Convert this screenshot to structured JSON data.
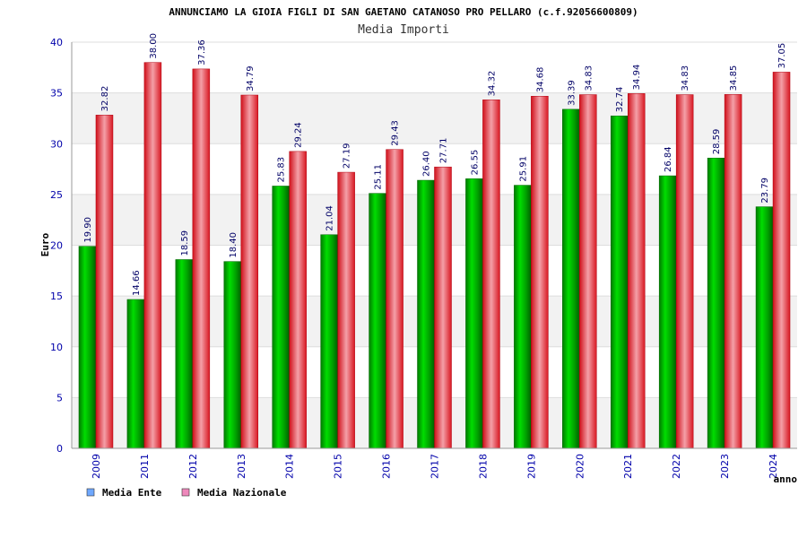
{
  "chart_data": {
    "type": "bar",
    "title": "ANNUNCIAMO LA GIOIA FIGLI DI SAN GAETANO CATANOSO PRO PELLARO (c.f.92056600809)",
    "subtitle": "Media Importi",
    "xlabel": "anno",
    "ylabel": "Euro",
    "ylim": [
      0,
      40
    ],
    "yticks": [
      0,
      5,
      10,
      15,
      20,
      25,
      30,
      35,
      40
    ],
    "grid": "horizontal bands",
    "legend_position": "bottom-left",
    "categories": [
      "2009",
      "2011",
      "2012",
      "2013",
      "2014",
      "2015",
      "2016",
      "2017",
      "2018",
      "2019",
      "2020",
      "2021",
      "2022",
      "2023",
      "2024"
    ],
    "series": [
      {
        "name": "Media Ente",
        "legend_color": "#6fa8ff",
        "color": "#00b400",
        "values": [
          19.9,
          14.66,
          18.59,
          18.4,
          25.83,
          21.04,
          25.11,
          26.4,
          26.55,
          25.91,
          33.39,
          32.74,
          26.84,
          28.59,
          23.79
        ],
        "labels": [
          "19.90",
          "14.66",
          "18.59",
          "18.40",
          "25.83",
          "21.04",
          "25.11",
          "26.40",
          "26.55",
          "25.91",
          "33.39",
          "32.74",
          "26.84",
          "28.59",
          "23.79"
        ]
      },
      {
        "name": "Media Nazionale",
        "legend_color": "#ee88bb",
        "color": "#e8202a",
        "values": [
          32.82,
          38.0,
          37.36,
          34.79,
          29.24,
          27.19,
          29.43,
          27.71,
          34.32,
          34.68,
          34.83,
          34.94,
          34.83,
          34.85,
          37.05
        ],
        "labels": [
          "32.82",
          "38.00",
          "37.36",
          "34.79",
          "29.24",
          "27.19",
          "29.43",
          "27.71",
          "34.32",
          "34.68",
          "34.83",
          "34.94",
          "34.83",
          "34.85",
          "37.05"
        ]
      }
    ]
  }
}
